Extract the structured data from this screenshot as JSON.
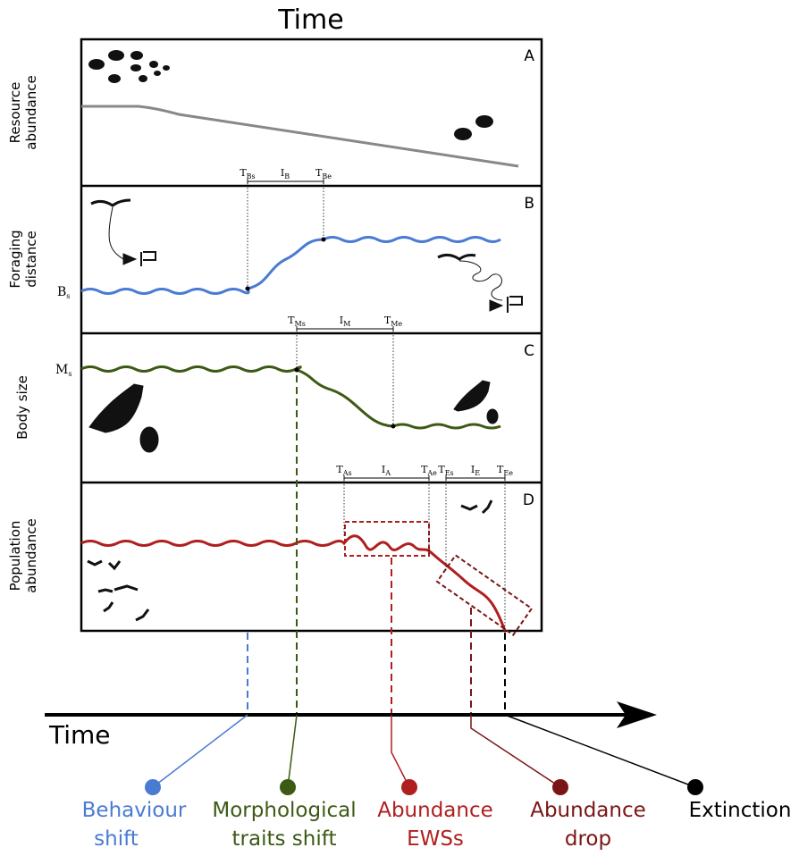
{
  "header": {
    "title": "Time"
  },
  "panels": [
    {
      "letter": "A",
      "ylabel": [
        "Resource",
        "abundance"
      ]
    },
    {
      "letter": "B",
      "ylabel": [
        "Foraging",
        "distance"
      ],
      "start": {
        "main": "B",
        "sub": "s"
      }
    },
    {
      "letter": "C",
      "ylabel": [
        "Body size"
      ],
      "start": {
        "main": "M",
        "sub": "s"
      }
    },
    {
      "letter": "D",
      "ylabel": [
        "Population",
        "abundance"
      ]
    }
  ],
  "markers": {
    "B": [
      {
        "main": "T",
        "sub": "Bs"
      },
      {
        "main": "I",
        "sub": "B"
      },
      {
        "main": "T",
        "sub": "Be"
      }
    ],
    "C": [
      {
        "main": "T",
        "sub": "Ms"
      },
      {
        "main": "I",
        "sub": "M"
      },
      {
        "main": "T",
        "sub": "Me"
      }
    ],
    "D": [
      {
        "main": "T",
        "sub": "As"
      },
      {
        "main": "I",
        "sub": "A"
      },
      {
        "main": "T",
        "sub": "Ae"
      },
      {
        "main": "T",
        "sub": "Es"
      },
      {
        "main": "I",
        "sub": "E"
      },
      {
        "main": "T",
        "sub": "Ee"
      }
    ]
  },
  "axis": {
    "label": "Time"
  },
  "legend": [
    {
      "lines": [
        "Behaviour",
        "shift"
      ]
    },
    {
      "lines": [
        "Morphological",
        "traits shift"
      ]
    },
    {
      "lines": [
        "Abundance",
        "EWSs"
      ]
    },
    {
      "lines": [
        "Abundance",
        "drop"
      ]
    },
    {
      "lines": [
        "Extinction"
      ]
    }
  ]
}
